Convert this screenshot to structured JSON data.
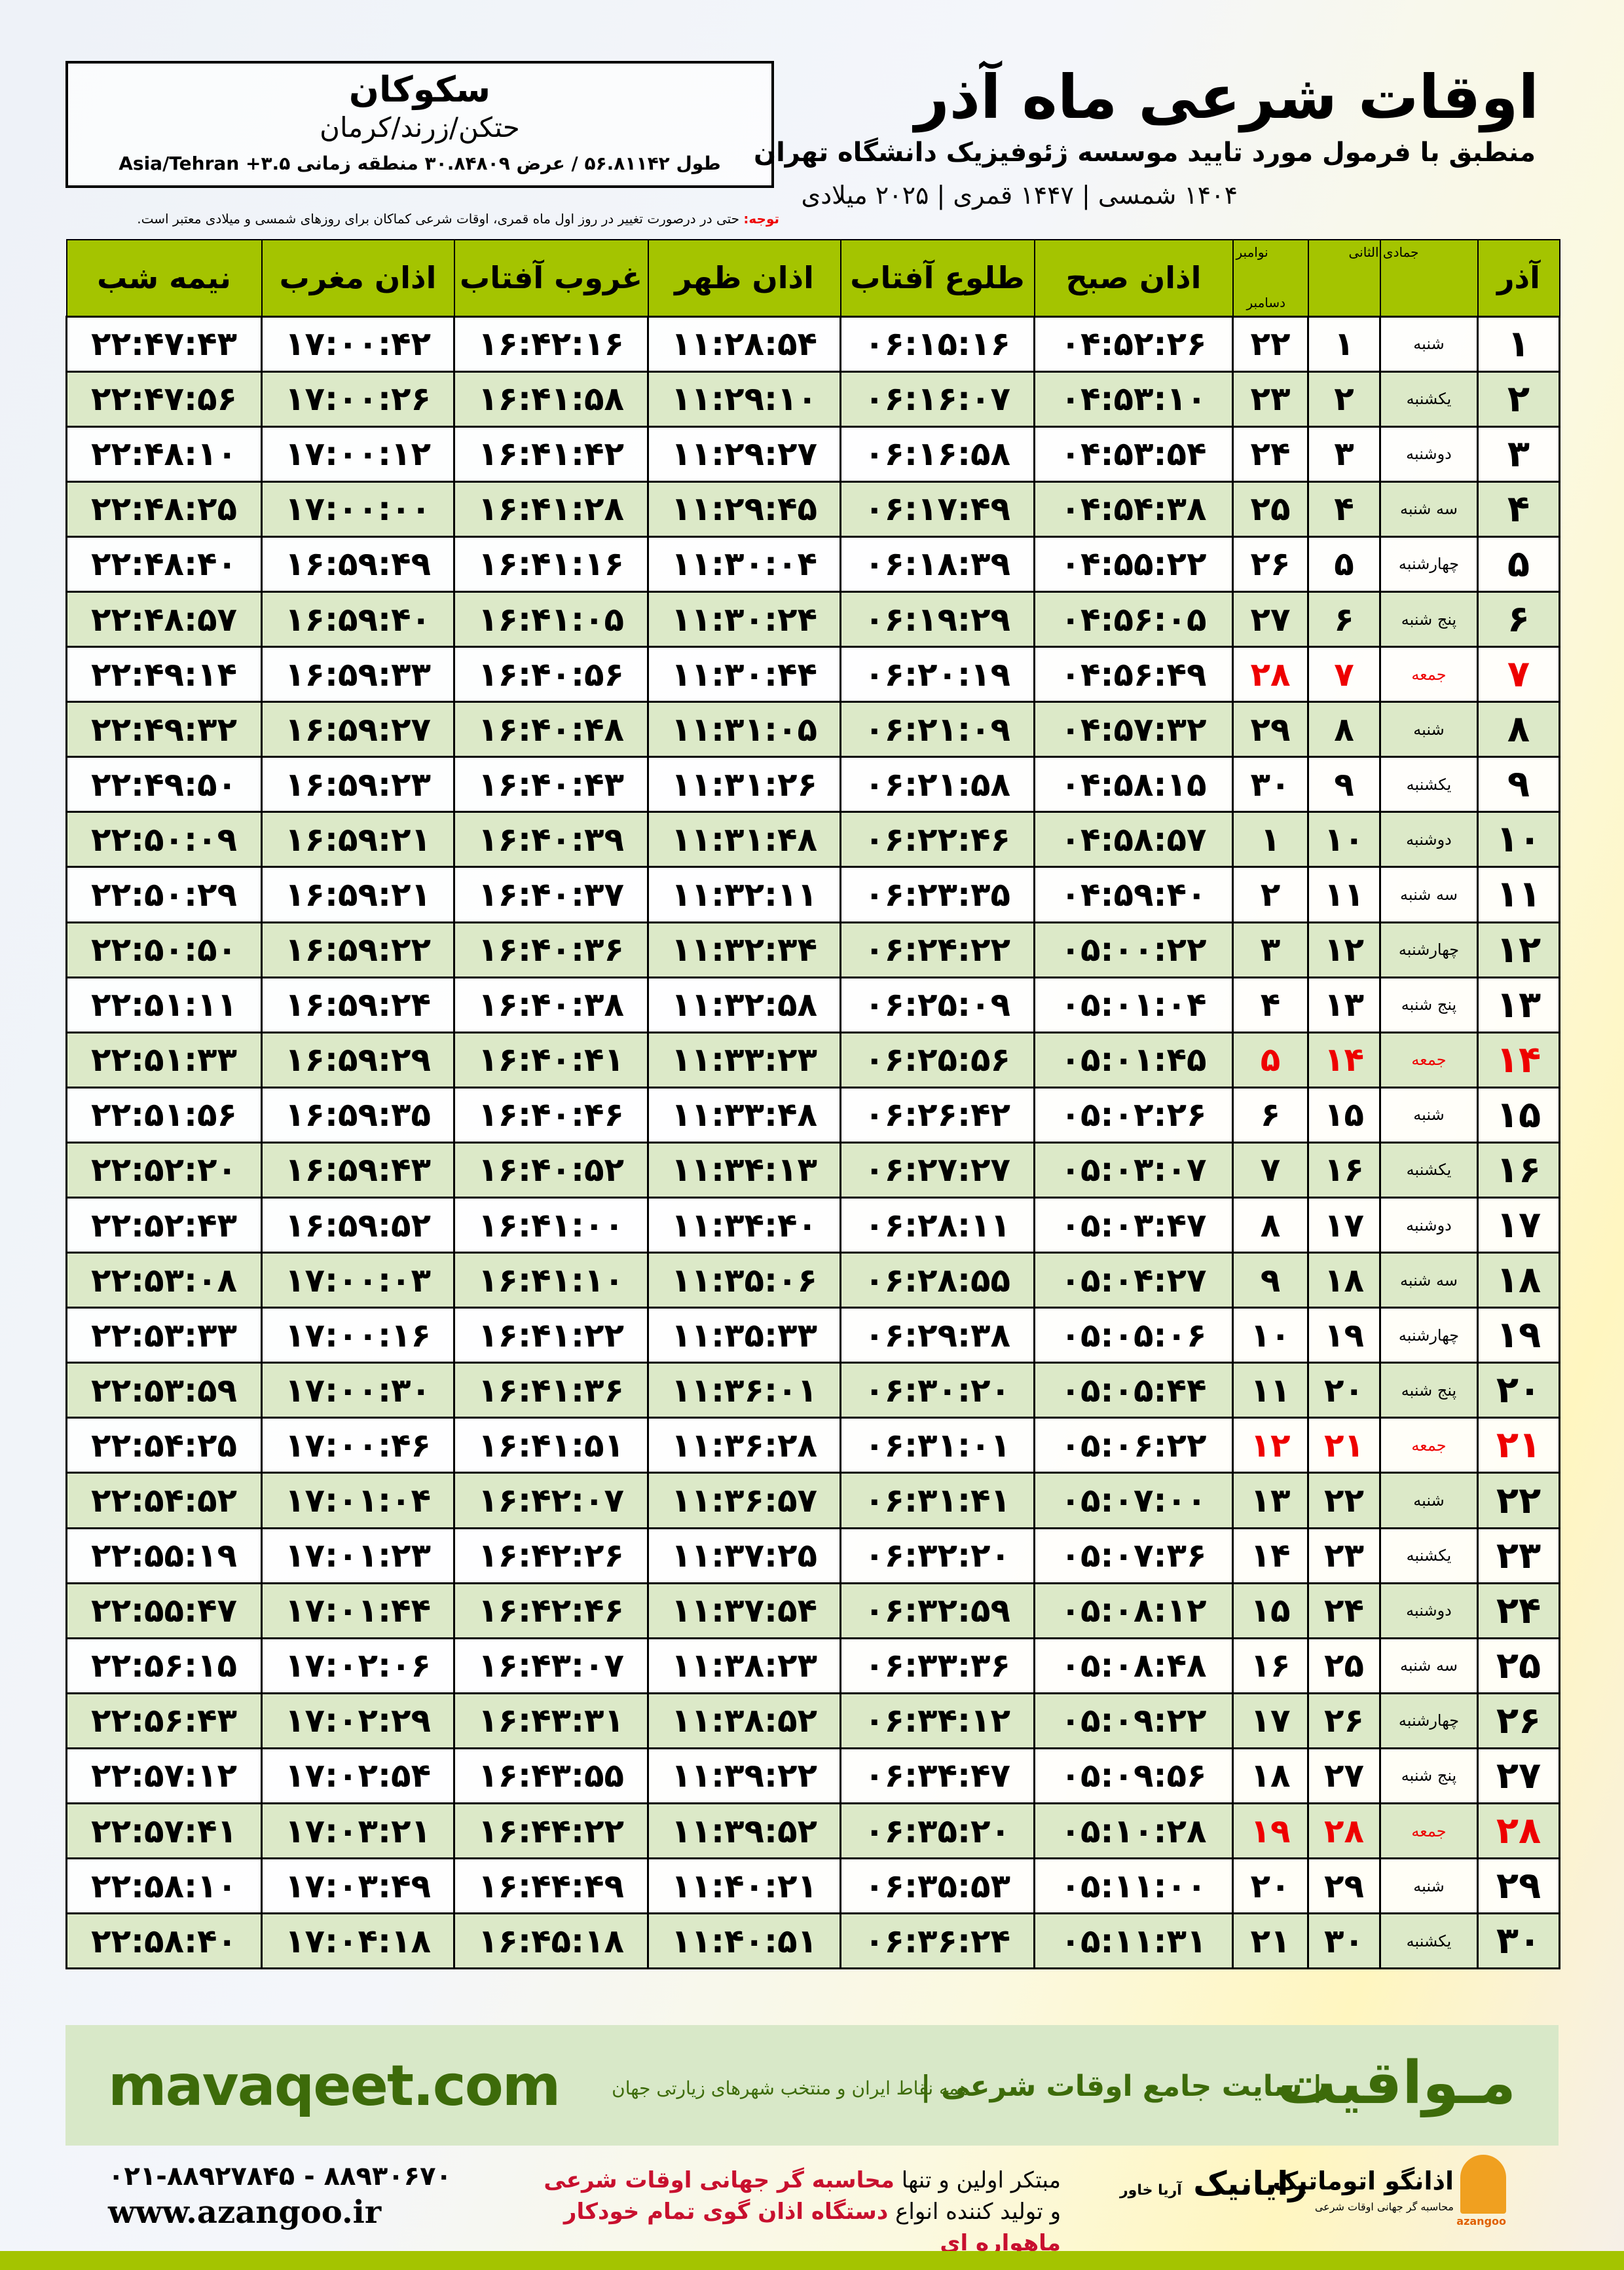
{
  "location": {
    "city": "سکوکان",
    "region": "حتکن/زرند/کرمان",
    "coords": "طول ۵۶.۸۱۱۴۲ / عرض ۳۰.۸۴۸۰۹ منطقه زمانی ۳.۵+ Asia/Tehran"
  },
  "header": {
    "title": "اوقات شرعی ماه آذر",
    "subtitle": "منطبق با فرمول مورد تایید موسسه ژئوفیزیک دانشگاه تهران",
    "dates": "۱۴۰۴ شمسی | ۱۴۴۷ قمری | ۲۰۲۵ میلادی"
  },
  "note": {
    "label": "توجه:",
    "text": " حتی در درصورت تغییر در روز اول ماه قمری، اوقات شرعی کماکان برای روزهای شمسی و میلادی معتبر است."
  },
  "table": {
    "headers": {
      "month": "آذر",
      "hijri": "جمادی الثانی",
      "greg_top": "نوامبر",
      "greg_bottom": "دسامبر",
      "sobh": "اذان صبح",
      "tolu": "طلوع آفتاب",
      "zohr": "اذان ظهر",
      "ghorub": "غروب آفتاب",
      "maghreb": "اذان مغرب",
      "nime": "نیمه شب"
    },
    "friday_color": "#e00000",
    "header_color": "#a4c400",
    "alt_row_color": "#dce9c8",
    "rows": [
      [
        "۱",
        "شنبه",
        "۱",
        "۲۲",
        "۰۴:۵۲:۲۶",
        "۰۶:۱۵:۱۶",
        "۱۱:۲۸:۵۴",
        "۱۶:۴۲:۱۶",
        "۱۷:۰۰:۴۲",
        "۲۲:۴۷:۴۳",
        false
      ],
      [
        "۲",
        "یکشنبه",
        "۲",
        "۲۳",
        "۰۴:۵۳:۱۰",
        "۰۶:۱۶:۰۷",
        "۱۱:۲۹:۱۰",
        "۱۶:۴۱:۵۸",
        "۱۷:۰۰:۲۶",
        "۲۲:۴۷:۵۶",
        false
      ],
      [
        "۳",
        "دوشنبه",
        "۳",
        "۲۴",
        "۰۴:۵۳:۵۴",
        "۰۶:۱۶:۵۸",
        "۱۱:۲۹:۲۷",
        "۱۶:۴۱:۴۲",
        "۱۷:۰۰:۱۲",
        "۲۲:۴۸:۱۰",
        false
      ],
      [
        "۴",
        "سه شنبه",
        "۴",
        "۲۵",
        "۰۴:۵۴:۳۸",
        "۰۶:۱۷:۴۹",
        "۱۱:۲۹:۴۵",
        "۱۶:۴۱:۲۸",
        "۱۷:۰۰:۰۰",
        "۲۲:۴۸:۲۵",
        false
      ],
      [
        "۵",
        "چهارشنبه",
        "۵",
        "۲۶",
        "۰۴:۵۵:۲۲",
        "۰۶:۱۸:۳۹",
        "۱۱:۳۰:۰۴",
        "۱۶:۴۱:۱۶",
        "۱۶:۵۹:۴۹",
        "۲۲:۴۸:۴۰",
        false
      ],
      [
        "۶",
        "پنج شنبه",
        "۶",
        "۲۷",
        "۰۴:۵۶:۰۵",
        "۰۶:۱۹:۲۹",
        "۱۱:۳۰:۲۴",
        "۱۶:۴۱:۰۵",
        "۱۶:۵۹:۴۰",
        "۲۲:۴۸:۵۷",
        false
      ],
      [
        "۷",
        "جمعه",
        "۷",
        "۲۸",
        "۰۴:۵۶:۴۹",
        "۰۶:۲۰:۱۹",
        "۱۱:۳۰:۴۴",
        "۱۶:۴۰:۵۶",
        "۱۶:۵۹:۳۳",
        "۲۲:۴۹:۱۴",
        true
      ],
      [
        "۸",
        "شنبه",
        "۸",
        "۲۹",
        "۰۴:۵۷:۳۲",
        "۰۶:۲۱:۰۹",
        "۱۱:۳۱:۰۵",
        "۱۶:۴۰:۴۸",
        "۱۶:۵۹:۲۷",
        "۲۲:۴۹:۳۲",
        false
      ],
      [
        "۹",
        "یکشنبه",
        "۹",
        "۳۰",
        "۰۴:۵۸:۱۵",
        "۰۶:۲۱:۵۸",
        "۱۱:۳۱:۲۶",
        "۱۶:۴۰:۴۳",
        "۱۶:۵۹:۲۳",
        "۲۲:۴۹:۵۰",
        false
      ],
      [
        "۱۰",
        "دوشنبه",
        "۱۰",
        "۱",
        "۰۴:۵۸:۵۷",
        "۰۶:۲۲:۴۶",
        "۱۱:۳۱:۴۸",
        "۱۶:۴۰:۳۹",
        "۱۶:۵۹:۲۱",
        "۲۲:۵۰:۰۹",
        false
      ],
      [
        "۱۱",
        "سه شنبه",
        "۱۱",
        "۲",
        "۰۴:۵۹:۴۰",
        "۰۶:۲۳:۳۵",
        "۱۱:۳۲:۱۱",
        "۱۶:۴۰:۳۷",
        "۱۶:۵۹:۲۱",
        "۲۲:۵۰:۲۹",
        false
      ],
      [
        "۱۲",
        "چهارشنبه",
        "۱۲",
        "۳",
        "۰۵:۰۰:۲۲",
        "۰۶:۲۴:۲۲",
        "۱۱:۳۲:۳۴",
        "۱۶:۴۰:۳۶",
        "۱۶:۵۹:۲۲",
        "۲۲:۵۰:۵۰",
        false
      ],
      [
        "۱۳",
        "پنج شنبه",
        "۱۳",
        "۴",
        "۰۵:۰۱:۰۴",
        "۰۶:۲۵:۰۹",
        "۱۱:۳۲:۵۸",
        "۱۶:۴۰:۳۸",
        "۱۶:۵۹:۲۴",
        "۲۲:۵۱:۱۱",
        false
      ],
      [
        "۱۴",
        "جمعه",
        "۱۴",
        "۵",
        "۰۵:۰۱:۴۵",
        "۰۶:۲۵:۵۶",
        "۱۱:۳۳:۲۳",
        "۱۶:۴۰:۴۱",
        "۱۶:۵۹:۲۹",
        "۲۲:۵۱:۳۳",
        true
      ],
      [
        "۱۵",
        "شنبه",
        "۱۵",
        "۶",
        "۰۵:۰۲:۲۶",
        "۰۶:۲۶:۴۲",
        "۱۱:۳۳:۴۸",
        "۱۶:۴۰:۴۶",
        "۱۶:۵۹:۳۵",
        "۲۲:۵۱:۵۶",
        false
      ],
      [
        "۱۶",
        "یکشنبه",
        "۱۶",
        "۷",
        "۰۵:۰۳:۰۷",
        "۰۶:۲۷:۲۷",
        "۱۱:۳۴:۱۳",
        "۱۶:۴۰:۵۲",
        "۱۶:۵۹:۴۳",
        "۲۲:۵۲:۲۰",
        false
      ],
      [
        "۱۷",
        "دوشنبه",
        "۱۷",
        "۸",
        "۰۵:۰۳:۴۷",
        "۰۶:۲۸:۱۱",
        "۱۱:۳۴:۴۰",
        "۱۶:۴۱:۰۰",
        "۱۶:۵۹:۵۲",
        "۲۲:۵۲:۴۳",
        false
      ],
      [
        "۱۸",
        "سه شنبه",
        "۱۸",
        "۹",
        "۰۵:۰۴:۲۷",
        "۰۶:۲۸:۵۵",
        "۱۱:۳۵:۰۶",
        "۱۶:۴۱:۱۰",
        "۱۷:۰۰:۰۳",
        "۲۲:۵۳:۰۸",
        false
      ],
      [
        "۱۹",
        "چهارشنبه",
        "۱۹",
        "۱۰",
        "۰۵:۰۵:۰۶",
        "۰۶:۲۹:۳۸",
        "۱۱:۳۵:۳۳",
        "۱۶:۴۱:۲۲",
        "۱۷:۰۰:۱۶",
        "۲۲:۵۳:۳۳",
        false
      ],
      [
        "۲۰",
        "پنج شنبه",
        "۲۰",
        "۱۱",
        "۰۵:۰۵:۴۴",
        "۰۶:۳۰:۲۰",
        "۱۱:۳۶:۰۱",
        "۱۶:۴۱:۳۶",
        "۱۷:۰۰:۳۰",
        "۲۲:۵۳:۵۹",
        false
      ],
      [
        "۲۱",
        "جمعه",
        "۲۱",
        "۱۲",
        "۰۵:۰۶:۲۲",
        "۰۶:۳۱:۰۱",
        "۱۱:۳۶:۲۸",
        "۱۶:۴۱:۵۱",
        "۱۷:۰۰:۴۶",
        "۲۲:۵۴:۲۵",
        true
      ],
      [
        "۲۲",
        "شنبه",
        "۲۲",
        "۱۳",
        "۰۵:۰۷:۰۰",
        "۰۶:۳۱:۴۱",
        "۱۱:۳۶:۵۷",
        "۱۶:۴۲:۰۷",
        "۱۷:۰۱:۰۴",
        "۲۲:۵۴:۵۲",
        false
      ],
      [
        "۲۳",
        "یکشنبه",
        "۲۳",
        "۱۴",
        "۰۵:۰۷:۳۶",
        "۰۶:۳۲:۲۰",
        "۱۱:۳۷:۲۵",
        "۱۶:۴۲:۲۶",
        "۱۷:۰۱:۲۳",
        "۲۲:۵۵:۱۹",
        false
      ],
      [
        "۲۴",
        "دوشنبه",
        "۲۴",
        "۱۵",
        "۰۵:۰۸:۱۲",
        "۰۶:۳۲:۵۹",
        "۱۱:۳۷:۵۴",
        "۱۶:۴۲:۴۶",
        "۱۷:۰۱:۴۴",
        "۲۲:۵۵:۴۷",
        false
      ],
      [
        "۲۵",
        "سه شنبه",
        "۲۵",
        "۱۶",
        "۰۵:۰۸:۴۸",
        "۰۶:۳۳:۳۶",
        "۱۱:۳۸:۲۳",
        "۱۶:۴۳:۰۷",
        "۱۷:۰۲:۰۶",
        "۲۲:۵۶:۱۵",
        false
      ],
      [
        "۲۶",
        "چهارشنبه",
        "۲۶",
        "۱۷",
        "۰۵:۰۹:۲۲",
        "۰۶:۳۴:۱۲",
        "۱۱:۳۸:۵۲",
        "۱۶:۴۳:۳۱",
        "۱۷:۰۲:۲۹",
        "۲۲:۵۶:۴۳",
        false
      ],
      [
        "۲۷",
        "پنج شنبه",
        "۲۷",
        "۱۸",
        "۰۵:۰۹:۵۶",
        "۰۶:۳۴:۴۷",
        "۱۱:۳۹:۲۲",
        "۱۶:۴۳:۵۵",
        "۱۷:۰۲:۵۴",
        "۲۲:۵۷:۱۲",
        false
      ],
      [
        "۲۸",
        "جمعه",
        "۲۸",
        "۱۹",
        "۰۵:۱۰:۲۸",
        "۰۶:۳۵:۲۰",
        "۱۱:۳۹:۵۲",
        "۱۶:۴۴:۲۲",
        "۱۷:۰۳:۲۱",
        "۲۲:۵۷:۴۱",
        true
      ],
      [
        "۲۹",
        "شنبه",
        "۲۹",
        "۲۰",
        "۰۵:۱۱:۰۰",
        "۰۶:۳۵:۵۳",
        "۱۱:۴۰:۲۱",
        "۱۶:۴۴:۴۹",
        "۱۷:۰۳:۴۹",
        "۲۲:۵۸:۱۰",
        false
      ],
      [
        "۳۰",
        "یکشنبه",
        "۳۰",
        "۲۱",
        "۰۵:۱۱:۳۱",
        "۰۶:۳۶:۲۴",
        "۱۱:۴۰:۵۱",
        "۱۶:۴۵:۱۸",
        "۱۷:۰۴:۱۸",
        "۲۲:۵۸:۴۰",
        false
      ]
    ]
  },
  "footer": {
    "brand": "مـواقیت",
    "slogan": "| سایت جامع اوقات شرعی |",
    "slogan2": "همه نقاط ایران و منتخب شهرهای زیارتی جهان",
    "site": "mavaqeet.com",
    "promo_1a": "مبتکر اولین و تنها ",
    "promo_1b": "محاسبه گر جهانی اوقات شرعی",
    "promo_2a": "و تولید کننده انواع ",
    "promo_2b": "دستگاه اذان گوی تمام خودکار ماهواره ای",
    "rayanik": "رایانیک",
    "rayanik_sub": "آریا خاور",
    "azangoo": "اذانگو اتوماتیک",
    "azangoo_sub": "محاسبه گر جهانی اوقات شرعی",
    "azangoo_en": "azangoo",
    "phones": "۰۲۱-۸۸۹۲۷۸۴۵ - ۸۸۹۳۰۶۷۰",
    "web": "www.azangoo.ir",
    "brand_color": "#3d6b0a",
    "accent_red": "#c8102e"
  }
}
